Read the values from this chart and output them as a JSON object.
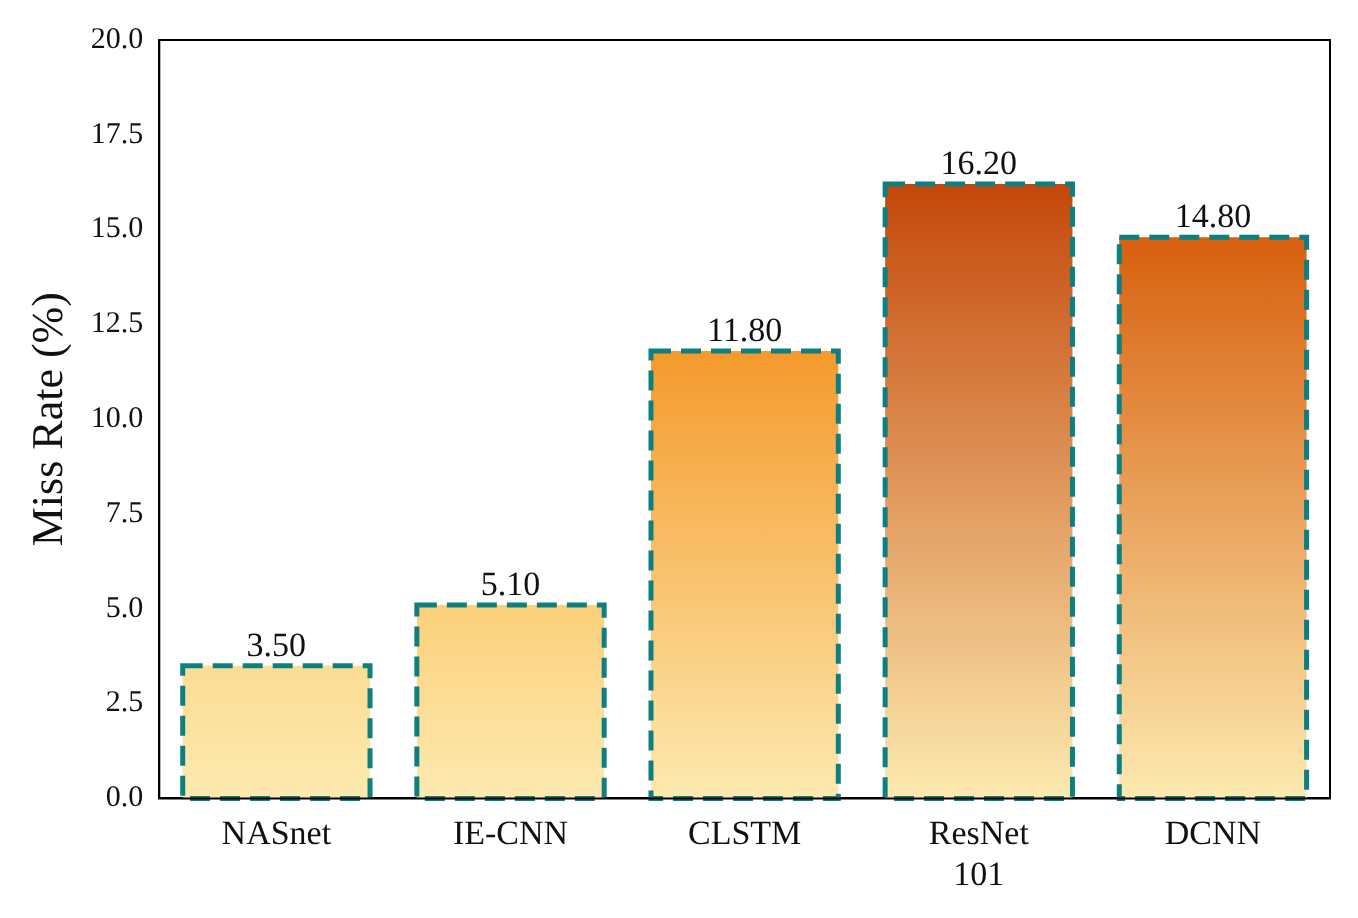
{
  "chart_data": {
    "type": "bar",
    "ylabel": "Miss Rate (%)",
    "categories": [
      "NASnet",
      "IE-CNN",
      "CLSTM",
      "ResNet 101",
      "DCNN"
    ],
    "values": [
      3.5,
      5.1,
      11.8,
      16.2,
      14.8
    ],
    "value_labels": [
      "3.50",
      "5.10",
      "11.80",
      "16.20",
      "14.80"
    ],
    "colors": [
      "#fbdc93",
      "#fbd07a",
      "#f59a2c",
      "#c4470a",
      "#d7600e"
    ],
    "ylim": [
      0,
      20
    ],
    "yticks": [
      {
        "value": 0,
        "label": "0.0"
      },
      {
        "value": 2.5,
        "label": "2.5"
      },
      {
        "value": 5,
        "label": "5.0"
      },
      {
        "value": 7.5,
        "label": "7.5"
      },
      {
        "value": 10,
        "label": "10.0"
      },
      {
        "value": 12.5,
        "label": "12.5"
      },
      {
        "value": 15,
        "label": "15.0"
      },
      {
        "value": 17.5,
        "label": "17.5"
      },
      {
        "value": 20,
        "label": "20.0"
      }
    ],
    "grid": false,
    "legend": false
  }
}
